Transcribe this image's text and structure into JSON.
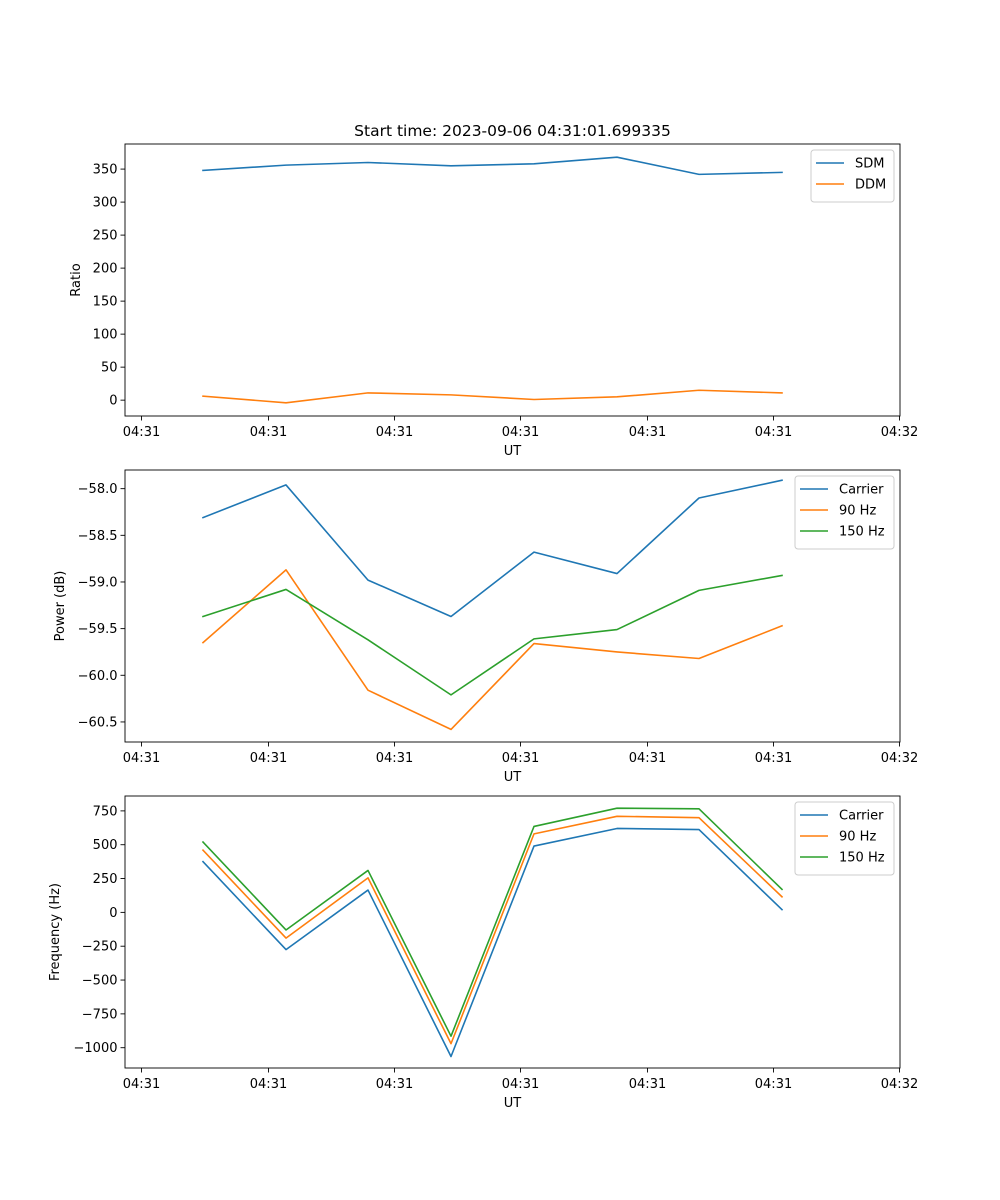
{
  "figure": {
    "title": "Start time: 2023-09-06 04:31:01.699335"
  },
  "colors": {
    "blue": "#1f77b4",
    "orange": "#ff7f0e",
    "green": "#2ca02c"
  },
  "chart_data": [
    {
      "type": "line",
      "ylabel": "Ratio",
      "xlabel": "UT",
      "x_ticks": [
        "04:31",
        "04:31",
        "04:31",
        "04:31",
        "04:31",
        "04:31",
        "04:31"
      ],
      "x_last_tick": "04:32",
      "x": [
        0,
        1,
        2,
        3,
        4,
        5,
        6,
        7
      ],
      "ylim": [
        -24,
        388
      ],
      "yticks": [
        0,
        50,
        100,
        150,
        200,
        250,
        300,
        350
      ],
      "legend_position": "top-right",
      "series": [
        {
          "name": "SDM",
          "color": "blue",
          "values": [
            348,
            356,
            360,
            355,
            358,
            368,
            342,
            345
          ]
        },
        {
          "name": "DDM",
          "color": "orange",
          "values": [
            6,
            -4,
            11,
            8,
            1,
            5,
            15,
            11
          ]
        }
      ]
    },
    {
      "type": "line",
      "ylabel": "Power (dB)",
      "xlabel": "UT",
      "x_ticks": [
        "04:31",
        "04:31",
        "04:31",
        "04:31",
        "04:31",
        "04:31",
        "04:31"
      ],
      "x_last_tick": "04:32",
      "x": [
        0,
        1,
        2,
        3,
        4,
        5,
        6,
        7
      ],
      "ylim": [
        -60.715,
        -57.8
      ],
      "yticks": [
        -60.5,
        -60.0,
        -59.5,
        -59.0,
        -58.5,
        -58.0
      ],
      "ytick_labels": [
        "−60.5",
        "−60.0",
        "−59.5",
        "−59.0",
        "−58.5",
        "−58.0"
      ],
      "legend_position": "top-right",
      "series": [
        {
          "name": "Carrier",
          "color": "blue",
          "values": [
            -58.31,
            -57.96,
            -58.98,
            -59.37,
            -58.68,
            -58.91,
            -58.1,
            -57.91
          ]
        },
        {
          "name": "90 Hz",
          "color": "orange",
          "values": [
            -59.65,
            -58.87,
            -60.16,
            -60.58,
            -59.66,
            -59.75,
            -59.82,
            -59.47
          ]
        },
        {
          "name": "150 Hz",
          "color": "green",
          "values": [
            -59.37,
            -59.08,
            -59.62,
            -60.21,
            -59.61,
            -59.51,
            -59.09,
            -58.93
          ]
        }
      ]
    },
    {
      "type": "line",
      "ylabel": "Frequency (Hz)",
      "xlabel": "UT",
      "x_ticks": [
        "04:31",
        "04:31",
        "04:31",
        "04:31",
        "04:31",
        "04:31",
        "04:31"
      ],
      "x_last_tick": "04:32",
      "x": [
        0,
        1,
        2,
        3,
        4,
        5,
        6,
        7
      ],
      "ylim": [
        -1150,
        860
      ],
      "yticks": [
        -1000,
        -750,
        -500,
        -250,
        0,
        250,
        500,
        750
      ],
      "ytick_labels": [
        "−1000",
        "−750",
        "−500",
        "−250",
        "0",
        "250",
        "500",
        "750"
      ],
      "legend_position": "top-right",
      "series": [
        {
          "name": "Carrier",
          "color": "blue",
          "values": [
            375,
            -275,
            165,
            -1065,
            490,
            620,
            612,
            20
          ]
        },
        {
          "name": "90 Hz",
          "color": "orange",
          "values": [
            460,
            -190,
            255,
            -970,
            580,
            710,
            700,
            115
          ]
        },
        {
          "name": "150 Hz",
          "color": "green",
          "values": [
            520,
            -130,
            310,
            -915,
            635,
            770,
            765,
            170
          ]
        }
      ]
    }
  ]
}
